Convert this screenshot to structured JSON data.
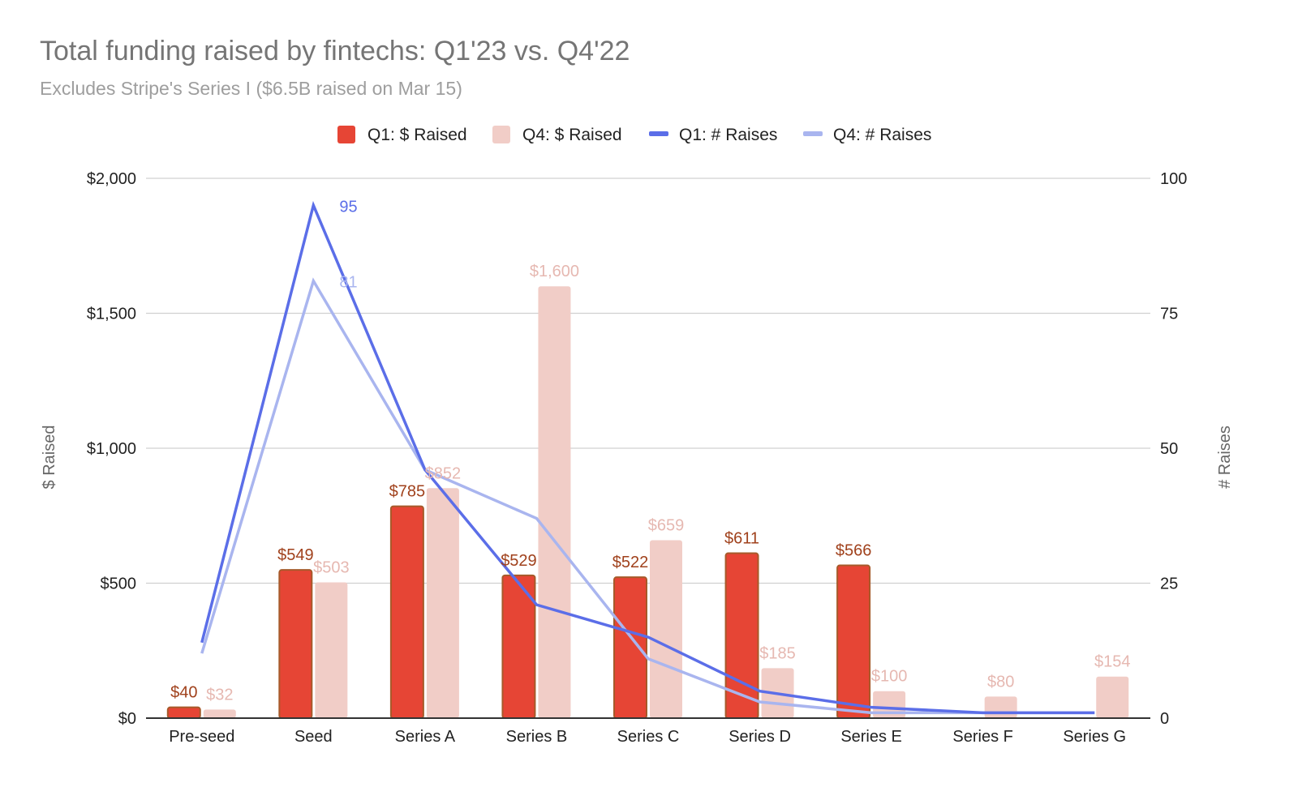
{
  "chart_data": {
    "type": "bar",
    "title": "Total funding raised by fintechs: Q1'23 vs. Q4'22",
    "subtitle": "Excludes Stripe's Series I ($6.5B raised on Mar 15)",
    "categories": [
      "Pre-seed",
      "Seed",
      "Series A",
      "Series B",
      "Series C",
      "Series D",
      "Series E",
      "Series F",
      "Series G"
    ],
    "series": [
      {
        "name": "Q1: $ Raised",
        "kind": "bar",
        "axis": "left",
        "color": "#e64535",
        "values": [
          40,
          549,
          785,
          529,
          522,
          611,
          566,
          null,
          null
        ],
        "labels": [
          "$40",
          "$549",
          "$785",
          "$529",
          "$522",
          "$611",
          "$566",
          "",
          ""
        ]
      },
      {
        "name": "Q4: $ Raised",
        "kind": "bar",
        "axis": "left",
        "color": "#f1cdc7",
        "values": [
          32,
          503,
          852,
          1600,
          659,
          185,
          100,
          80,
          154
        ],
        "labels": [
          "$32",
          "$503",
          "$852",
          "$1,600",
          "$659",
          "$185",
          "$100",
          "$80",
          "$154"
        ]
      },
      {
        "name": "Q1: # Raises",
        "kind": "line",
        "axis": "right",
        "color": "#5b6ee8",
        "values": [
          14,
          95,
          46,
          21,
          15,
          5,
          2,
          1,
          1
        ],
        "labels": [
          "",
          "95",
          "",
          "",
          "",
          "",
          "",
          "",
          ""
        ]
      },
      {
        "name": "Q4: # Raises",
        "kind": "line",
        "axis": "right",
        "color": "#a9b5ef",
        "values": [
          12,
          81,
          46,
          37,
          11,
          3,
          1,
          1,
          1
        ],
        "labels": [
          "",
          "81",
          "",
          "",
          "",
          "",
          "",
          "",
          ""
        ]
      }
    ],
    "y_left": {
      "label": "$ Raised",
      "ylim": [
        0,
        2000
      ],
      "ticks": [
        0,
        500,
        1000,
        1500,
        2000
      ],
      "tick_labels": [
        "$0",
        "$500",
        "$1,000",
        "$1,500",
        "$2,000"
      ]
    },
    "y_right": {
      "label": "# Raises",
      "ylim": [
        0,
        100
      ],
      "ticks": [
        0,
        25,
        50,
        75,
        100
      ],
      "tick_labels": [
        "0",
        "25",
        "50",
        "75",
        "100"
      ]
    },
    "legend_position": "top-center",
    "grid": true,
    "colors": {
      "bar_q1_border": "#a65a2a",
      "q1_label": "#a0411c",
      "q4_label": "#e6b8b1",
      "grid": "#d0d0d0",
      "axis": "#333333",
      "tick_text": "#222222",
      "axis_title": "#666666"
    }
  }
}
